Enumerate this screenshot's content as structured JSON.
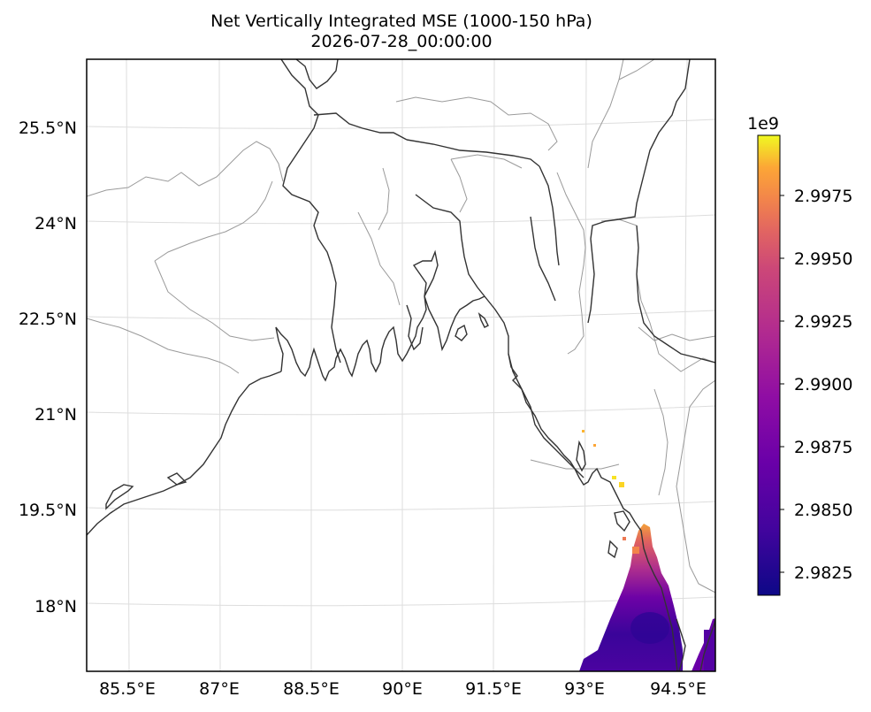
{
  "title_line1": "Net Vertically Integrated MSE (1000-150 hPa)",
  "title_line2": "2026-07-28_00:00:00",
  "map": {
    "x_ticks": [
      "85.5°E",
      "87°E",
      "88.5°E",
      "90°E",
      "91.5°E",
      "93°E",
      "94.5°E"
    ],
    "y_ticks": [
      "25.5°N",
      "24°N",
      "22.5°N",
      "21°N",
      "19.5°N",
      "18°N"
    ],
    "colors": {
      "coast": "#333333",
      "borders": "#9a9a9a",
      "grid": "#dddddd"
    }
  },
  "colorbar": {
    "colormap": "plasma",
    "offset_label": "1e9",
    "ticks": [
      "2.9975",
      "2.9950",
      "2.9925",
      "2.9900",
      "2.9875",
      "2.9850",
      "2.9825"
    ],
    "range": [
      2.98165,
      2.99995
    ]
  }
}
